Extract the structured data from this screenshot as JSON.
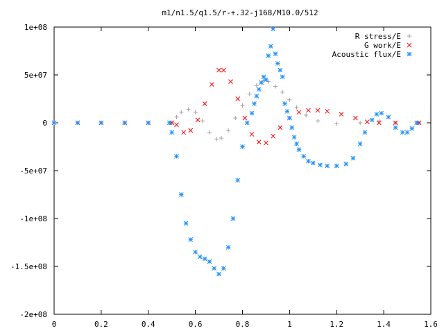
{
  "chart_data": {
    "type": "scatter",
    "title": "m1/n1.5/q1.5/r-+.32-j168/M10.0/512",
    "xlabel": "",
    "ylabel": "",
    "xlim": [
      0,
      1.6
    ],
    "ylim": [
      -200000000,
      100000000
    ],
    "x_ticks": [
      "0",
      "0.2",
      "0.4",
      "0.6",
      "0.8",
      "1",
      "1.2",
      "1.4",
      "1.6"
    ],
    "y_ticks": [
      "1e+08",
      "5e+07",
      "0",
      "-5e+07",
      "-1e+08",
      "-1.5e+08",
      "-2e+08"
    ],
    "grid": false,
    "legend_position": "top-right",
    "series": [
      {
        "name": "R stress/E",
        "marker": "+",
        "color": "#a0a0a0",
        "points": [
          [
            0,
            0
          ],
          [
            0.1,
            0
          ],
          [
            0.2,
            0
          ],
          [
            0.3,
            0
          ],
          [
            0.4,
            0
          ],
          [
            0.5,
            0
          ],
          [
            0.52,
            6000000
          ],
          [
            0.54,
            11000000
          ],
          [
            0.57,
            14000000
          ],
          [
            0.6,
            11000000
          ],
          [
            0.63,
            2000000
          ],
          [
            0.66,
            -10000000
          ],
          [
            0.69,
            -17000000
          ],
          [
            0.71,
            -16000000
          ],
          [
            0.74,
            -8000000
          ],
          [
            0.77,
            5000000
          ],
          [
            0.8,
            18000000
          ],
          [
            0.83,
            30000000
          ],
          [
            0.86,
            39000000
          ],
          [
            0.89,
            44000000
          ],
          [
            0.91,
            43000000
          ],
          [
            0.94,
            38000000
          ],
          [
            0.97,
            32000000
          ],
          [
            1.0,
            24000000
          ],
          [
            1.03,
            16000000
          ],
          [
            1.07,
            8000000
          ],
          [
            1.12,
            2000000
          ],
          [
            1.2,
            -1000000
          ],
          [
            1.3,
            0
          ],
          [
            1.38,
            2000000
          ],
          [
            1.45,
            0
          ],
          [
            1.55,
            0
          ]
        ]
      },
      {
        "name": "G work/E",
        "marker": "x",
        "color": "#ff0000",
        "points": [
          [
            0,
            0
          ],
          [
            0.1,
            0
          ],
          [
            0.2,
            0
          ],
          [
            0.3,
            0
          ],
          [
            0.4,
            0
          ],
          [
            0.5,
            0
          ],
          [
            0.52,
            -2000000
          ],
          [
            0.55,
            -10000000
          ],
          [
            0.58,
            -8000000
          ],
          [
            0.61,
            3000000
          ],
          [
            0.64,
            20000000
          ],
          [
            0.67,
            40000000
          ],
          [
            0.7,
            55000000
          ],
          [
            0.72,
            55000000
          ],
          [
            0.75,
            43000000
          ],
          [
            0.78,
            25000000
          ],
          [
            0.81,
            5000000
          ],
          [
            0.84,
            -12000000
          ],
          [
            0.87,
            -20000000
          ],
          [
            0.9,
            -21000000
          ],
          [
            0.93,
            -14000000
          ],
          [
            0.96,
            -5000000
          ],
          [
            1.0,
            5000000
          ],
          [
            1.04,
            11000000
          ],
          [
            1.08,
            13000000
          ],
          [
            1.12,
            13000000
          ],
          [
            1.16,
            12000000
          ],
          [
            1.22,
            9000000
          ],
          [
            1.28,
            5000000
          ],
          [
            1.33,
            1000000
          ],
          [
            1.38,
            0
          ],
          [
            1.45,
            0
          ],
          [
            1.55,
            0
          ]
        ]
      },
      {
        "name": "Acoustic flux/E",
        "marker": "*",
        "color": "#1e90ff",
        "points": [
          [
            0,
            0
          ],
          [
            0.1,
            0
          ],
          [
            0.2,
            0
          ],
          [
            0.3,
            0
          ],
          [
            0.4,
            0
          ],
          [
            0.49,
            0
          ],
          [
            0.5,
            -10000000
          ],
          [
            0.52,
            -35000000
          ],
          [
            0.54,
            -75000000
          ],
          [
            0.56,
            -105000000
          ],
          [
            0.58,
            -122000000
          ],
          [
            0.6,
            -135000000
          ],
          [
            0.62,
            -140000000
          ],
          [
            0.64,
            -142000000
          ],
          [
            0.66,
            -145000000
          ],
          [
            0.68,
            -152000000
          ],
          [
            0.7,
            -158000000
          ],
          [
            0.72,
            -152000000
          ],
          [
            0.74,
            -130000000
          ],
          [
            0.76,
            -100000000
          ],
          [
            0.78,
            -60000000
          ],
          [
            0.8,
            -25000000
          ],
          [
            0.82,
            0
          ],
          [
            0.84,
            10000000
          ],
          [
            0.85,
            20000000
          ],
          [
            0.86,
            28000000
          ],
          [
            0.87,
            35000000
          ],
          [
            0.88,
            42000000
          ],
          [
            0.89,
            48000000
          ],
          [
            0.9,
            45000000
          ],
          [
            0.91,
            70000000
          ],
          [
            0.92,
            80000000
          ],
          [
            0.93,
            98000000
          ],
          [
            0.94,
            72000000
          ],
          [
            0.95,
            62000000
          ],
          [
            0.96,
            55000000
          ],
          [
            0.97,
            48000000
          ],
          [
            0.98,
            20000000
          ],
          [
            0.99,
            12000000
          ],
          [
            1.0,
            5000000
          ],
          [
            1.01,
            -5000000
          ],
          [
            1.02,
            -15000000
          ],
          [
            1.03,
            -22000000
          ],
          [
            1.04,
            -28000000
          ],
          [
            1.06,
            -35000000
          ],
          [
            1.08,
            -40000000
          ],
          [
            1.1,
            -42000000
          ],
          [
            1.13,
            -44000000
          ],
          [
            1.16,
            -45000000
          ],
          [
            1.2,
            -45000000
          ],
          [
            1.24,
            -43000000
          ],
          [
            1.27,
            -37000000
          ],
          [
            1.3,
            -22000000
          ],
          [
            1.32,
            -10000000
          ],
          [
            1.35,
            3000000
          ],
          [
            1.37,
            9000000
          ],
          [
            1.39,
            10000000
          ],
          [
            1.42,
            6000000
          ],
          [
            1.45,
            -5000000
          ],
          [
            1.48,
            -10000000
          ],
          [
            1.5,
            -10000000
          ],
          [
            1.52,
            -6000000
          ],
          [
            1.54,
            0
          ]
        ]
      }
    ]
  }
}
